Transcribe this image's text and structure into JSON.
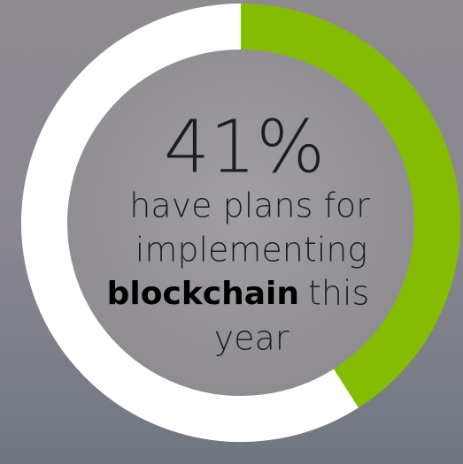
{
  "chart_data": {
    "type": "donut",
    "values": [
      41,
      59
    ],
    "value_labels": [
      "41%"
    ],
    "colors": [
      "#84bd00",
      "#ffffff"
    ],
    "caption": [
      "have plans for",
      "implementing",
      "blockchain",
      "this",
      "year"
    ]
  }
}
